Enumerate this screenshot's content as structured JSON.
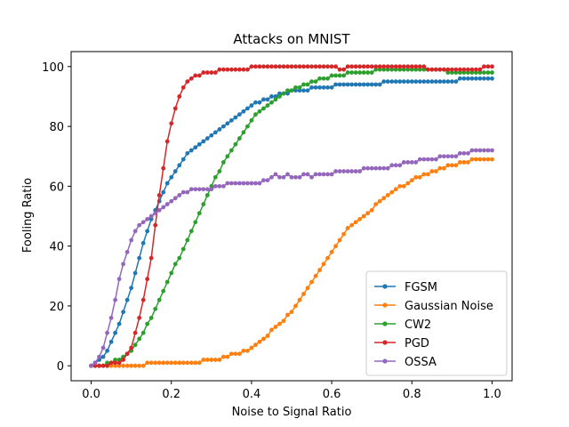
{
  "chart_data": {
    "type": "line",
    "title": "Attacks on MNIST",
    "xlabel": "Noise to Signal Ratio",
    "ylabel": "Fooling Ratio",
    "xlim": [
      -0.05,
      1.05
    ],
    "ylim": [
      -5,
      105
    ],
    "xticks": [
      0.0,
      0.2,
      0.4,
      0.6,
      0.8,
      1.0
    ],
    "xtick_labels": [
      "0.0",
      "0.2",
      "0.4",
      "0.6",
      "0.8",
      "1.0"
    ],
    "yticks": [
      0,
      20,
      40,
      60,
      80,
      100
    ],
    "ytick_labels": [
      "0",
      "20",
      "40",
      "60",
      "80",
      "100"
    ],
    "grid": false,
    "legend_position": "lower-right",
    "x": [
      0.0,
      0.01,
      0.02,
      0.03,
      0.04,
      0.05,
      0.06,
      0.07,
      0.08,
      0.09,
      0.1,
      0.11,
      0.12,
      0.13,
      0.14,
      0.15,
      0.16,
      0.17,
      0.18,
      0.19,
      0.2,
      0.21,
      0.22,
      0.23,
      0.24,
      0.25,
      0.26,
      0.27,
      0.28,
      0.29,
      0.3,
      0.31,
      0.32,
      0.33,
      0.34,
      0.35,
      0.36,
      0.37,
      0.38,
      0.39,
      0.4,
      0.41,
      0.42,
      0.43,
      0.44,
      0.45,
      0.46,
      0.47,
      0.48,
      0.49,
      0.5,
      0.51,
      0.52,
      0.53,
      0.54,
      0.55,
      0.56,
      0.57,
      0.58,
      0.59,
      0.6,
      0.61,
      0.62,
      0.63,
      0.64,
      0.65,
      0.66,
      0.67,
      0.68,
      0.69,
      0.7,
      0.71,
      0.72,
      0.73,
      0.74,
      0.75,
      0.76,
      0.77,
      0.78,
      0.79,
      0.8,
      0.81,
      0.82,
      0.83,
      0.84,
      0.85,
      0.86,
      0.87,
      0.88,
      0.89,
      0.9,
      0.91,
      0.92,
      0.93,
      0.94,
      0.95,
      0.96,
      0.97,
      0.98,
      0.99,
      1.0
    ],
    "series": [
      {
        "name": "FGSM",
        "color": "#1f77b4",
        "values": [
          0,
          1,
          2,
          3,
          5,
          8,
          11,
          14,
          18,
          22,
          26,
          31,
          36,
          41,
          45,
          49,
          52,
          55,
          58,
          61,
          63,
          65,
          67,
          69,
          71,
          72,
          73,
          74,
          75,
          76,
          77,
          78,
          79,
          80,
          81,
          82,
          83,
          84,
          85,
          86,
          87,
          88,
          88,
          89,
          89,
          90,
          90,
          91,
          91,
          91,
          92,
          92,
          92,
          92,
          92,
          93,
          93,
          93,
          93,
          93,
          93,
          94,
          94,
          94,
          94,
          94,
          94,
          94,
          94,
          94,
          94,
          94,
          94,
          95,
          95,
          95,
          95,
          95,
          95,
          95,
          95,
          95,
          95,
          95,
          95,
          95,
          95,
          95,
          95,
          95,
          95,
          95,
          96,
          96,
          96,
          96,
          96,
          96,
          96,
          96,
          96
        ]
      },
      {
        "name": "Gaussian Noise",
        "color": "#ff7f0e",
        "values": [
          0,
          0,
          0,
          0,
          0,
          0,
          0,
          0,
          0,
          0,
          0,
          0,
          0,
          0,
          1,
          1,
          1,
          1,
          1,
          1,
          1,
          1,
          1,
          1,
          1,
          1,
          1,
          1,
          2,
          2,
          2,
          2,
          2,
          3,
          3,
          4,
          4,
          4,
          5,
          5,
          6,
          7,
          8,
          9,
          10,
          12,
          13,
          14,
          15,
          17,
          18,
          20,
          22,
          24,
          26,
          28,
          30,
          32,
          34,
          36,
          38,
          40,
          42,
          44,
          46,
          47,
          48,
          49,
          50,
          51,
          52,
          54,
          55,
          56,
          57,
          58,
          59,
          60,
          60,
          61,
          62,
          63,
          63,
          64,
          64,
          65,
          65,
          66,
          66,
          67,
          67,
          67,
          68,
          68,
          68,
          69,
          69,
          69,
          69,
          69,
          69
        ]
      },
      {
        "name": "CW2",
        "color": "#2ca02c",
        "values": [
          0,
          0,
          0,
          0,
          1,
          1,
          2,
          2,
          3,
          4,
          5,
          7,
          9,
          11,
          14,
          16,
          19,
          22,
          25,
          28,
          31,
          34,
          36,
          39,
          42,
          45,
          48,
          51,
          54,
          57,
          60,
          63,
          65,
          68,
          70,
          72,
          74,
          76,
          78,
          80,
          82,
          84,
          85,
          86,
          87,
          88,
          89,
          90,
          91,
          92,
          92,
          93,
          93,
          94,
          94,
          95,
          95,
          96,
          96,
          96,
          97,
          97,
          97,
          97,
          98,
          98,
          98,
          98,
          98,
          98,
          98,
          99,
          99,
          99,
          99,
          99,
          99,
          99,
          99,
          99,
          99,
          99,
          99,
          99,
          99,
          99,
          99,
          99,
          99,
          98,
          98,
          98,
          98,
          98,
          98,
          98,
          98,
          98,
          98,
          98,
          98
        ]
      },
      {
        "name": "PGD",
        "color": "#d62728",
        "values": [
          0,
          0,
          0,
          0,
          0,
          1,
          1,
          1,
          2,
          4,
          6,
          11,
          16,
          22,
          29,
          36,
          47,
          57,
          66,
          75,
          81,
          86,
          90,
          93,
          95,
          96,
          97,
          97,
          98,
          98,
          98,
          98,
          99,
          99,
          99,
          99,
          99,
          99,
          99,
          99,
          100,
          100,
          100,
          100,
          100,
          100,
          100,
          100,
          100,
          100,
          100,
          100,
          100,
          100,
          100,
          100,
          100,
          100,
          100,
          100,
          100,
          100,
          99,
          99,
          100,
          100,
          100,
          100,
          100,
          100,
          100,
          100,
          100,
          100,
          100,
          100,
          100,
          100,
          100,
          100,
          100,
          100,
          100,
          100,
          99,
          99,
          99,
          99,
          99,
          99,
          99,
          99,
          99,
          99,
          99,
          99,
          99,
          99,
          100,
          100,
          100
        ]
      },
      {
        "name": "OSSA",
        "color": "#9467bd",
        "values": [
          0,
          1,
          3,
          6,
          11,
          16,
          22,
          29,
          34,
          38,
          42,
          45,
          47,
          48,
          49,
          50,
          51,
          52,
          53,
          54,
          55,
          56,
          57,
          58,
          58,
          59,
          59,
          59,
          59,
          59,
          59,
          60,
          60,
          60,
          61,
          61,
          61,
          61,
          61,
          61,
          61,
          61,
          61,
          62,
          62,
          63,
          64,
          63,
          63,
          64,
          63,
          63,
          63,
          64,
          64,
          63,
          64,
          64,
          64,
          64,
          64,
          65,
          65,
          65,
          65,
          65,
          65,
          65,
          66,
          66,
          66,
          66,
          66,
          66,
          66,
          67,
          67,
          67,
          68,
          68,
          68,
          68,
          69,
          69,
          69,
          69,
          69,
          70,
          70,
          70,
          70,
          70,
          71,
          71,
          71,
          72,
          72,
          72,
          72,
          72,
          72
        ]
      }
    ]
  }
}
